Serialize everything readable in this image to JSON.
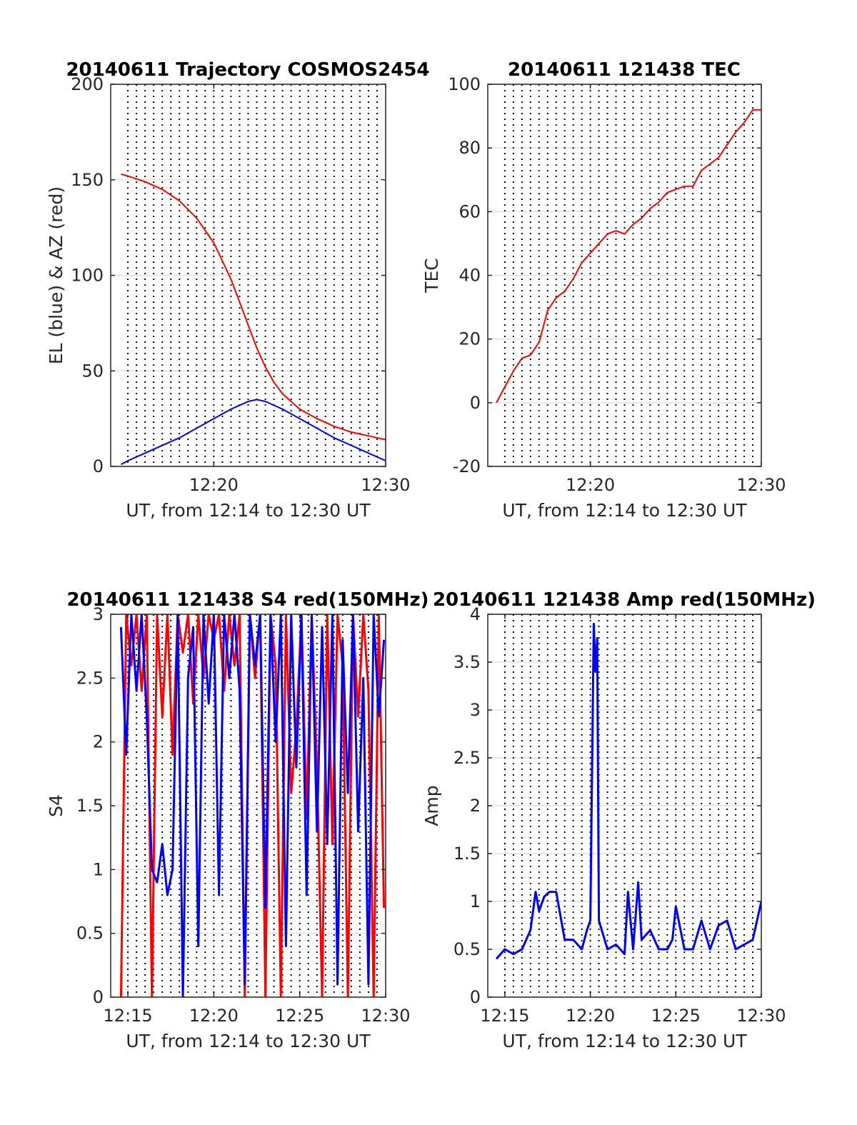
{
  "chart_data": [
    {
      "type": "line",
      "title": "20140611 Trajectory COSMOS2454",
      "xlabel": "UT, from 12:14 to 12:30 UT",
      "ylabel": "EL (blue) & AZ (red)",
      "xlim_minutes": [
        14.0,
        30.0
      ],
      "ylim": [
        0,
        200
      ],
      "xticks": [
        {
          "value": 20,
          "label": "12:20"
        },
        {
          "value": 30,
          "label": "12:30"
        }
      ],
      "yticks": [
        {
          "value": 0,
          "label": "0"
        },
        {
          "value": 50,
          "label": "50"
        },
        {
          "value": 100,
          "label": "100"
        },
        {
          "value": 150,
          "label": "150"
        },
        {
          "value": 200,
          "label": "200"
        }
      ],
      "grid": true,
      "dotted_vlines_minutes": [
        15,
        15.5,
        16,
        16.5,
        17,
        17.5,
        18,
        18.5,
        19,
        19.5,
        20,
        20.5,
        21,
        21.5,
        22,
        22.5,
        23,
        23.5,
        24,
        24.5,
        25,
        25.5,
        26,
        26.5,
        27,
        27.5,
        28,
        28.5,
        29,
        29.5
      ],
      "series": [
        {
          "color": "#ff0000",
          "x_minutes": [
            14.6,
            15.0,
            16.0,
            17.0,
            18.0,
            19.0,
            20.0,
            21.0,
            21.5,
            22.0,
            22.5,
            23.0,
            23.5,
            24.0,
            25.0,
            26.0,
            27.0,
            28.0,
            29.0,
            30.0
          ],
          "values": [
            153,
            152,
            149,
            145,
            139,
            130,
            117,
            98,
            86,
            74,
            62,
            52,
            44,
            38,
            30,
            25,
            21,
            18,
            16,
            14
          ]
        },
        {
          "color": "#0000ff",
          "x_minutes": [
            14.6,
            15.0,
            16.0,
            17.0,
            18.0,
            19.0,
            20.0,
            21.0,
            21.5,
            22.0,
            22.5,
            23.0,
            23.5,
            24.0,
            25.0,
            26.0,
            27.0,
            28.0,
            29.0,
            30.0
          ],
          "values": [
            1,
            3,
            7,
            11,
            15,
            20,
            25,
            30,
            32,
            34,
            35,
            34,
            32,
            30,
            25,
            20,
            15,
            11,
            7,
            3
          ]
        }
      ]
    },
    {
      "type": "line",
      "title": "20140611 121438 TEC",
      "xlabel": "UT, from 12:14 to 12:30 UT",
      "ylabel": "TEC",
      "xlim_minutes": [
        14.0,
        30.0
      ],
      "ylim": [
        -20,
        100
      ],
      "xticks": [
        {
          "value": 20,
          "label": "12:20"
        },
        {
          "value": 30,
          "label": "12:30"
        }
      ],
      "yticks": [
        {
          "value": -20,
          "label": "-20"
        },
        {
          "value": 0,
          "label": "0"
        },
        {
          "value": 20,
          "label": "20"
        },
        {
          "value": 40,
          "label": "40"
        },
        {
          "value": 60,
          "label": "60"
        },
        {
          "value": 80,
          "label": "80"
        },
        {
          "value": 100,
          "label": "100"
        }
      ],
      "grid": true,
      "dotted_vlines_minutes": [
        15,
        15.5,
        16,
        16.5,
        17,
        17.5,
        18,
        18.5,
        19,
        19.5,
        20,
        20.5,
        21,
        21.5,
        22,
        22.5,
        23,
        23.5,
        24,
        24.5,
        25,
        25.5,
        26,
        26.5,
        27,
        27.5,
        28,
        28.5,
        29,
        29.5
      ],
      "series": [
        {
          "color": "#ff0000",
          "x_minutes": [
            14.5,
            15.0,
            15.5,
            16.0,
            16.5,
            17.0,
            17.5,
            18.0,
            18.5,
            19.0,
            19.5,
            20.0,
            20.5,
            21.0,
            21.5,
            22.0,
            22.5,
            23.0,
            23.5,
            24.0,
            24.5,
            25.0,
            25.5,
            26.0,
            26.5,
            27.0,
            27.5,
            28.0,
            28.5,
            29.0,
            29.5,
            30.0
          ],
          "values": [
            0,
            5,
            10,
            14,
            15,
            19,
            29,
            33,
            35,
            39,
            44,
            47,
            50,
            53,
            54,
            53,
            56,
            58,
            61,
            63,
            66,
            67,
            68,
            68,
            73,
            75,
            77,
            81,
            85,
            88,
            92,
            92
          ]
        }
      ]
    },
    {
      "type": "line",
      "title": "20140611 121438 S4 red(150MHz)",
      "xlabel": "UT, from 12:14 to 12:30 UT",
      "ylabel": "S4",
      "xlim_minutes": [
        14.0,
        30.0
      ],
      "ylim": [
        0,
        3
      ],
      "xticks": [
        {
          "value": 15,
          "label": "12:15"
        },
        {
          "value": 20,
          "label": "12:20"
        },
        {
          "value": 25,
          "label": "12:25"
        },
        {
          "value": 30,
          "label": "12:30"
        }
      ],
      "yticks": [
        {
          "value": 0,
          "label": "0"
        },
        {
          "value": 0.5,
          "label": "0.5"
        },
        {
          "value": 1,
          "label": "1"
        },
        {
          "value": 1.5,
          "label": "1.5"
        },
        {
          "value": 2,
          "label": "2"
        },
        {
          "value": 2.5,
          "label": "2.5"
        },
        {
          "value": 3,
          "label": "3"
        }
      ],
      "grid": true,
      "dotted_vlines_minutes": [
        15,
        15.5,
        16,
        16.5,
        17,
        17.5,
        18,
        18.5,
        19,
        19.5,
        20,
        20.5,
        21,
        21.5,
        22,
        22.5,
        23,
        23.5,
        24,
        24.5,
        25,
        25.5,
        26,
        26.5,
        27,
        27.5,
        28,
        28.5,
        29,
        29.5
      ],
      "series": [
        {
          "color": "#ff0000",
          "x_minutes": [
            14.6,
            14.9,
            15.2,
            15.5,
            15.8,
            16.1,
            16.4,
            16.7,
            17.0,
            17.3,
            17.6,
            17.9,
            18.2,
            18.5,
            18.8,
            19.1,
            19.4,
            19.7,
            20.0,
            20.3,
            20.6,
            20.9,
            21.2,
            21.5,
            21.8,
            22.1,
            22.4,
            22.7,
            23.0,
            23.3,
            23.6,
            23.9,
            24.2,
            24.5,
            24.8,
            25.1,
            25.4,
            25.7,
            26.0,
            26.3,
            26.6,
            26.9,
            27.2,
            27.5,
            27.8,
            28.1,
            28.4,
            28.7,
            29.0,
            29.3,
            29.6,
            29.9
          ],
          "values": [
            0,
            3,
            2.6,
            3,
            2.4,
            3,
            0,
            3,
            2.2,
            3,
            1.9,
            3,
            2.7,
            3,
            2.3,
            3,
            2.5,
            3,
            2.8,
            3,
            2.4,
            3,
            2.6,
            3,
            0,
            3,
            2.5,
            3,
            0,
            3,
            2.6,
            0,
            3,
            1.6,
            2.1,
            3,
            1.4,
            3,
            1.8,
            0,
            3,
            1.2,
            3,
            2.6,
            0,
            3,
            2.2,
            3,
            2.4,
            0,
            3,
            0.7
          ]
        },
        {
          "color": "#0000ff",
          "x_minutes": [
            14.6,
            14.9,
            15.2,
            15.5,
            15.8,
            16.1,
            16.4,
            16.7,
            17.0,
            17.3,
            17.6,
            17.9,
            18.2,
            18.5,
            18.8,
            19.1,
            19.4,
            19.7,
            20.0,
            20.3,
            20.6,
            20.9,
            21.2,
            21.5,
            21.8,
            22.1,
            22.4,
            22.7,
            23.0,
            23.3,
            23.6,
            23.9,
            24.2,
            24.5,
            24.8,
            25.1,
            25.4,
            25.7,
            26.0,
            26.3,
            26.6,
            26.9,
            27.2,
            27.5,
            27.8,
            28.1,
            28.4,
            28.7,
            29.0,
            29.3,
            29.6,
            29.9
          ],
          "values": [
            2.9,
            1.9,
            3,
            2.4,
            3,
            2.2,
            1.0,
            0.9,
            1.2,
            0.8,
            1.0,
            3,
            0,
            2.5,
            2.9,
            0.4,
            3,
            2.3,
            3,
            0.8,
            3,
            2.5,
            3,
            2.4,
            0.1,
            3,
            2.6,
            3,
            0.7,
            3,
            2.0,
            3,
            0.4,
            3,
            1.8,
            3,
            0.8,
            3,
            1.3,
            2.9,
            1.2,
            3,
            0.1,
            2.8,
            1.6,
            3,
            1.3,
            2.5,
            0.1,
            3,
            2.2,
            2.8
          ]
        }
      ]
    },
    {
      "type": "line",
      "title": "20140611 121438 Amp red(150MHz)",
      "xlabel": "UT, from 12:14 to 12:30 UT",
      "ylabel": "Amp",
      "xlim_minutes": [
        14.0,
        30.0
      ],
      "ylim": [
        0,
        4
      ],
      "xticks": [
        {
          "value": 15,
          "label": "12:15"
        },
        {
          "value": 20,
          "label": "12:20"
        },
        {
          "value": 25,
          "label": "12:25"
        },
        {
          "value": 30,
          "label": "12:30"
        }
      ],
      "yticks": [
        {
          "value": 0,
          "label": "0"
        },
        {
          "value": 0.5,
          "label": "0.5"
        },
        {
          "value": 1,
          "label": "1"
        },
        {
          "value": 1.5,
          "label": "1.5"
        },
        {
          "value": 2,
          "label": "2"
        },
        {
          "value": 2.5,
          "label": "2.5"
        },
        {
          "value": 3,
          "label": "3"
        },
        {
          "value": 3.5,
          "label": "3.5"
        },
        {
          "value": 4,
          "label": "4"
        }
      ],
      "grid": true,
      "dotted_vlines_minutes": [
        15,
        15.5,
        16,
        16.5,
        17,
        17.5,
        18,
        18.5,
        19,
        19.5,
        20,
        20.5,
        21,
        21.5,
        22,
        22.5,
        23,
        23.5,
        24,
        24.5,
        25,
        25.5,
        26,
        26.5,
        27,
        27.5,
        28,
        28.5,
        29,
        29.5
      ],
      "series": [
        {
          "color": "#0000ff",
          "x_minutes": [
            14.5,
            15.0,
            15.5,
            16.0,
            16.5,
            16.8,
            17.0,
            17.3,
            17.6,
            18.0,
            18.5,
            19.0,
            19.5,
            19.8,
            20.0,
            20.2,
            20.3,
            20.4,
            20.5,
            21.0,
            21.5,
            22.0,
            22.2,
            22.5,
            22.8,
            23.0,
            23.5,
            24.0,
            24.5,
            24.8,
            25.0,
            25.5,
            26.0,
            26.5,
            27.0,
            27.5,
            28.0,
            28.5,
            29.0,
            29.5,
            30.0
          ],
          "values": [
            0.4,
            0.5,
            0.45,
            0.5,
            0.7,
            1.1,
            0.9,
            1.05,
            1.1,
            1.1,
            0.6,
            0.6,
            0.5,
            0.7,
            0.8,
            3.9,
            3.4,
            3.75,
            0.8,
            0.5,
            0.55,
            0.45,
            1.1,
            0.5,
            1.2,
            0.6,
            0.7,
            0.5,
            0.5,
            0.6,
            0.95,
            0.5,
            0.5,
            0.8,
            0.5,
            0.75,
            0.8,
            0.5,
            0.55,
            0.6,
            1.0
          ]
        }
      ]
    }
  ]
}
